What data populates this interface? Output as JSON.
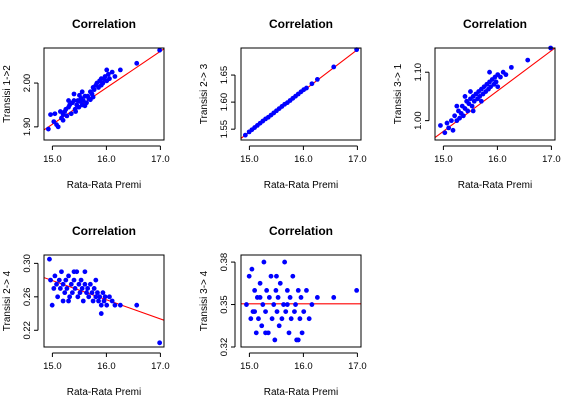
{
  "chart_data": [
    {
      "type": "scatter",
      "title": "Correlation",
      "xlabel": "Rata-Rata Premi",
      "ylabel": "Transisi 1->2",
      "xlim": [
        15.0,
        17.2
      ],
      "ylim": [
        1.87,
        2.08
      ],
      "xticks": [
        "15.0",
        "16.0",
        "17.0"
      ],
      "yticks": [
        "1.90",
        "2.00"
      ],
      "ytick_values": [
        1.9,
        2.0
      ],
      "point_color": "#0000ff",
      "line_color": "#ff0000",
      "fit_line": {
        "x": [
          15.0,
          17.2
        ],
        "y": [
          1.893,
          2.078
        ]
      },
      "points": [
        [
          15.08,
          1.895
        ],
        [
          15.12,
          1.928
        ],
        [
          15.18,
          1.912
        ],
        [
          15.2,
          1.93
        ],
        [
          15.23,
          1.905
        ],
        [
          15.26,
          1.9
        ],
        [
          15.3,
          1.935
        ],
        [
          15.32,
          1.92
        ],
        [
          15.35,
          1.928
        ],
        [
          15.38,
          1.935
        ],
        [
          15.4,
          1.94
        ],
        [
          15.42,
          1.925
        ],
        [
          15.45,
          1.945
        ],
        [
          15.47,
          1.95
        ],
        [
          15.5,
          1.93
        ],
        [
          15.52,
          1.955
        ],
        [
          15.55,
          1.96
        ],
        [
          15.57,
          1.94
        ],
        [
          15.6,
          1.95
        ],
        [
          15.62,
          1.96
        ],
        [
          15.64,
          1.945
        ],
        [
          15.66,
          1.958
        ],
        [
          15.68,
          1.965
        ],
        [
          15.7,
          1.95
        ],
        [
          15.72,
          1.96
        ],
        [
          15.75,
          1.97
        ],
        [
          15.78,
          1.955
        ],
        [
          15.8,
          1.97
        ],
        [
          15.82,
          1.965
        ],
        [
          15.85,
          1.98
        ],
        [
          15.88,
          1.975
        ],
        [
          15.9,
          1.99
        ],
        [
          15.92,
          1.985
        ],
        [
          15.95,
          1.995
        ],
        [
          15.97,
          2.0
        ],
        [
          16.0,
          1.99
        ],
        [
          16.02,
          2.005
        ],
        [
          16.05,
          2.01
        ],
        [
          16.08,
          2.0
        ],
        [
          16.1,
          2.01
        ],
        [
          16.12,
          2.015
        ],
        [
          16.15,
          2.005
        ],
        [
          16.18,
          2.02
        ],
        [
          16.2,
          2.01
        ],
        [
          16.25,
          2.025
        ],
        [
          16.3,
          2.015
        ],
        [
          16.4,
          2.03
        ],
        [
          16.7,
          2.045
        ],
        [
          17.12,
          2.075
        ],
        [
          15.45,
          1.96
        ],
        [
          15.58,
          1.935
        ],
        [
          15.75,
          1.948
        ],
        [
          15.9,
          1.968
        ],
        [
          16.05,
          1.995
        ],
        [
          15.65,
          1.972
        ],
        [
          15.35,
          1.915
        ],
        [
          15.55,
          1.975
        ],
        [
          16.15,
          2.03
        ],
        [
          15.85,
          1.962
        ],
        [
          15.7,
          1.98
        ]
      ]
    },
    {
      "type": "scatter",
      "title": "Correlation",
      "xlabel": "Rata-Rata Premi",
      "ylabel": "Transisi 2-> 3",
      "xlim": [
        15.0,
        17.2
      ],
      "ylim": [
        1.53,
        1.7
      ],
      "xticks": [
        "15.0",
        "16.0",
        "17.0"
      ],
      "yticks": [
        "1.55",
        "1.60",
        "1.65"
      ],
      "ytick_values": [
        1.55,
        1.6,
        1.65
      ],
      "point_color": "#0000ff",
      "line_color": "#ff0000",
      "fit_line": {
        "x": [
          15.0,
          17.2
        ],
        "y": [
          1.533,
          1.702
        ]
      },
      "points": [
        [
          15.08,
          1.539
        ],
        [
          15.15,
          1.545
        ],
        [
          15.2,
          1.549
        ],
        [
          15.25,
          1.553
        ],
        [
          15.3,
          1.557
        ],
        [
          15.35,
          1.561
        ],
        [
          15.4,
          1.565
        ],
        [
          15.45,
          1.569
        ],
        [
          15.5,
          1.572
        ],
        [
          15.55,
          1.576
        ],
        [
          15.6,
          1.58
        ],
        [
          15.65,
          1.584
        ],
        [
          15.7,
          1.588
        ],
        [
          15.75,
          1.592
        ],
        [
          15.8,
          1.596
        ],
        [
          15.85,
          1.599
        ],
        [
          15.9,
          1.603
        ],
        [
          15.95,
          1.607
        ],
        [
          16.0,
          1.611
        ],
        [
          16.05,
          1.615
        ],
        [
          16.1,
          1.619
        ],
        [
          16.15,
          1.623
        ],
        [
          16.2,
          1.626
        ],
        [
          16.3,
          1.634
        ],
        [
          16.4,
          1.642
        ],
        [
          16.7,
          1.665
        ],
        [
          17.12,
          1.697
        ]
      ]
    },
    {
      "type": "scatter",
      "title": "Correlation",
      "xlabel": "Rata-Rata Premi",
      "ylabel": "Transisi 3-> 1",
      "xlim": [
        15.0,
        17.2
      ],
      "ylim": [
        0.96,
        1.15
      ],
      "xticks": [
        "15.0",
        "16.0",
        "17.0"
      ],
      "yticks": [
        "1.00",
        "1.10"
      ],
      "ytick_values": [
        1.0,
        1.1
      ],
      "point_color": "#0000ff",
      "line_color": "#ff0000",
      "fit_line": {
        "x": [
          15.0,
          17.2
        ],
        "y": [
          0.965,
          1.15
        ]
      },
      "points": [
        [
          15.1,
          0.99
        ],
        [
          15.18,
          0.975
        ],
        [
          15.22,
          0.995
        ],
        [
          15.25,
          0.985
        ],
        [
          15.3,
          1.0
        ],
        [
          15.33,
          0.98
        ],
        [
          15.36,
          1.01
        ],
        [
          15.4,
          1.0
        ],
        [
          15.43,
          1.02
        ],
        [
          15.45,
          1.005
        ],
        [
          15.48,
          1.015
        ],
        [
          15.5,
          1.03
        ],
        [
          15.52,
          1.01
        ],
        [
          15.55,
          1.025
        ],
        [
          15.58,
          1.04
        ],
        [
          15.6,
          1.02
        ],
        [
          15.62,
          1.035
        ],
        [
          15.65,
          1.045
        ],
        [
          15.68,
          1.03
        ],
        [
          15.7,
          1.05
        ],
        [
          15.72,
          1.04
        ],
        [
          15.75,
          1.055
        ],
        [
          15.78,
          1.045
        ],
        [
          15.8,
          1.06
        ],
        [
          15.82,
          1.05
        ],
        [
          15.85,
          1.065
        ],
        [
          15.88,
          1.055
        ],
        [
          15.9,
          1.07
        ],
        [
          15.93,
          1.06
        ],
        [
          15.95,
          1.075
        ],
        [
          15.98,
          1.065
        ],
        [
          16.0,
          1.08
        ],
        [
          16.02,
          1.07
        ],
        [
          16.05,
          1.085
        ],
        [
          16.08,
          1.075
        ],
        [
          16.1,
          1.09
        ],
        [
          16.12,
          1.08
        ],
        [
          16.15,
          1.095
        ],
        [
          16.2,
          1.09
        ],
        [
          16.25,
          1.1
        ],
        [
          16.3,
          1.095
        ],
        [
          16.4,
          1.11
        ],
        [
          16.7,
          1.125
        ],
        [
          17.12,
          1.15
        ],
        [
          15.55,
          1.05
        ],
        [
          15.7,
          1.02
        ],
        [
          15.85,
          1.04
        ],
        [
          16.0,
          1.1
        ],
        [
          15.4,
          1.03
        ],
        [
          15.65,
          1.06
        ],
        [
          16.15,
          1.07
        ]
      ]
    },
    {
      "type": "scatter",
      "title": "Correlation",
      "xlabel": "Rata-Rata Premi",
      "ylabel": "Transisi 2-> 4",
      "xlim": [
        15.0,
        17.2
      ],
      "ylim": [
        0.2,
        0.31
      ],
      "xticks": [
        "15.0",
        "16.0",
        "17.0"
      ],
      "yticks": [
        "0.22",
        "0.26",
        "0.30"
      ],
      "ytick_values": [
        0.22,
        0.26,
        0.3
      ],
      "point_color": "#0000ff",
      "line_color": "#ff0000",
      "fit_line": {
        "x": [
          15.0,
          17.2
        ],
        "y": [
          0.283,
          0.232
        ]
      },
      "points": [
        [
          15.1,
          0.305
        ],
        [
          15.12,
          0.28
        ],
        [
          15.18,
          0.27
        ],
        [
          15.2,
          0.285
        ],
        [
          15.23,
          0.275
        ],
        [
          15.25,
          0.26
        ],
        [
          15.28,
          0.28
        ],
        [
          15.3,
          0.27
        ],
        [
          15.32,
          0.29
        ],
        [
          15.35,
          0.275
        ],
        [
          15.38,
          0.265
        ],
        [
          15.4,
          0.28
        ],
        [
          15.42,
          0.27
        ],
        [
          15.45,
          0.285
        ],
        [
          15.47,
          0.26
        ],
        [
          15.5,
          0.275
        ],
        [
          15.52,
          0.265
        ],
        [
          15.55,
          0.28
        ],
        [
          15.57,
          0.27
        ],
        [
          15.6,
          0.29
        ],
        [
          15.62,
          0.26
        ],
        [
          15.64,
          0.275
        ],
        [
          15.66,
          0.265
        ],
        [
          15.68,
          0.28
        ],
        [
          15.7,
          0.27
        ],
        [
          15.72,
          0.255
        ],
        [
          15.75,
          0.275
        ],
        [
          15.78,
          0.265
        ],
        [
          15.8,
          0.27
        ],
        [
          15.82,
          0.26
        ],
        [
          15.85,
          0.275
        ],
        [
          15.88,
          0.265
        ],
        [
          15.9,
          0.255
        ],
        [
          15.92,
          0.27
        ],
        [
          15.95,
          0.26
        ],
        [
          15.98,
          0.265
        ],
        [
          16.0,
          0.255
        ],
        [
          16.02,
          0.26
        ],
        [
          16.05,
          0.25
        ],
        [
          16.08,
          0.265
        ],
        [
          16.1,
          0.255
        ],
        [
          16.12,
          0.26
        ],
        [
          16.15,
          0.25
        ],
        [
          16.2,
          0.26
        ],
        [
          16.25,
          0.255
        ],
        [
          16.3,
          0.25
        ],
        [
          16.4,
          0.25
        ],
        [
          16.7,
          0.25
        ],
        [
          17.12,
          0.205
        ],
        [
          15.15,
          0.25
        ],
        [
          15.35,
          0.255
        ],
        [
          15.55,
          0.29
        ],
        [
          15.75,
          0.29
        ],
        [
          15.95,
          0.28
        ],
        [
          16.05,
          0.24
        ],
        [
          15.45,
          0.255
        ]
      ]
    },
    {
      "type": "scatter",
      "title": "Correlation",
      "xlabel": "Rata-Rata Premi",
      "ylabel": "Transisi 3-> 4",
      "xlim": [
        15.0,
        17.2
      ],
      "ylim": [
        0.32,
        0.385
      ],
      "xticks": [
        "15.0",
        "16.0",
        "17.0"
      ],
      "yticks": [
        "0.32",
        "0.35",
        "0.38"
      ],
      "ytick_values": [
        0.32,
        0.35,
        0.38
      ],
      "point_color": "#0000ff",
      "line_color": "#ff0000",
      "fit_line": {
        "x": [
          15.0,
          17.2
        ],
        "y": [
          0.3505,
          0.3505
        ]
      },
      "points": [
        [
          15.1,
          0.35
        ],
        [
          15.15,
          0.37
        ],
        [
          15.18,
          0.34
        ],
        [
          15.2,
          0.375
        ],
        [
          15.22,
          0.345
        ],
        [
          15.25,
          0.36
        ],
        [
          15.28,
          0.33
        ],
        [
          15.3,
          0.355
        ],
        [
          15.32,
          0.34
        ],
        [
          15.35,
          0.365
        ],
        [
          15.38,
          0.335
        ],
        [
          15.4,
          0.35
        ],
        [
          15.42,
          0.38
        ],
        [
          15.45,
          0.345
        ],
        [
          15.47,
          0.36
        ],
        [
          15.5,
          0.33
        ],
        [
          15.52,
          0.355
        ],
        [
          15.55,
          0.37
        ],
        [
          15.57,
          0.34
        ],
        [
          15.6,
          0.35
        ],
        [
          15.62,
          0.325
        ],
        [
          15.64,
          0.36
        ],
        [
          15.66,
          0.345
        ],
        [
          15.68,
          0.355
        ],
        [
          15.7,
          0.335
        ],
        [
          15.72,
          0.365
        ],
        [
          15.75,
          0.34
        ],
        [
          15.78,
          0.35
        ],
        [
          15.8,
          0.38
        ],
        [
          15.82,
          0.345
        ],
        [
          15.85,
          0.36
        ],
        [
          15.88,
          0.33
        ],
        [
          15.9,
          0.355
        ],
        [
          15.92,
          0.34
        ],
        [
          15.95,
          0.37
        ],
        [
          15.98,
          0.345
        ],
        [
          16.0,
          0.35
        ],
        [
          16.02,
          0.325
        ],
        [
          16.05,
          0.36
        ],
        [
          16.08,
          0.34
        ],
        [
          16.1,
          0.355
        ],
        [
          16.12,
          0.33
        ],
        [
          16.15,
          0.345
        ],
        [
          16.2,
          0.36
        ],
        [
          16.25,
          0.34
        ],
        [
          16.3,
          0.35
        ],
        [
          16.4,
          0.355
        ],
        [
          16.7,
          0.355
        ],
        [
          17.12,
          0.36
        ],
        [
          15.25,
          0.345
        ],
        [
          15.45,
          0.33
        ],
        [
          15.65,
          0.37
        ],
        [
          15.85,
          0.35
        ],
        [
          16.05,
          0.325
        ],
        [
          15.35,
          0.355
        ]
      ]
    }
  ]
}
